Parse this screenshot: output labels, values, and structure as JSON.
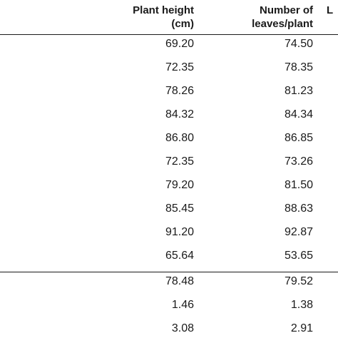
{
  "table": {
    "headers": [
      [
        "Plant height",
        "(cm)"
      ],
      [
        "Number of",
        "leaves/plant"
      ],
      [
        "L"
      ]
    ],
    "rows": [
      [
        "69.20",
        "74.50"
      ],
      [
        "72.35",
        "78.35"
      ],
      [
        "78.26",
        "81.23"
      ],
      [
        "84.32",
        "84.34"
      ],
      [
        "86.80",
        "86.85"
      ],
      [
        "72.35",
        "73.26"
      ],
      [
        "79.20",
        "81.50"
      ],
      [
        "85.45",
        "88.63"
      ],
      [
        "91.20",
        "92.87"
      ],
      [
        "65.64",
        "53.65"
      ]
    ],
    "summary_rows": [
      [
        "78.48",
        "79.52"
      ],
      [
        "1.46",
        "1.38"
      ],
      [
        "3.08",
        "2.91"
      ]
    ]
  }
}
